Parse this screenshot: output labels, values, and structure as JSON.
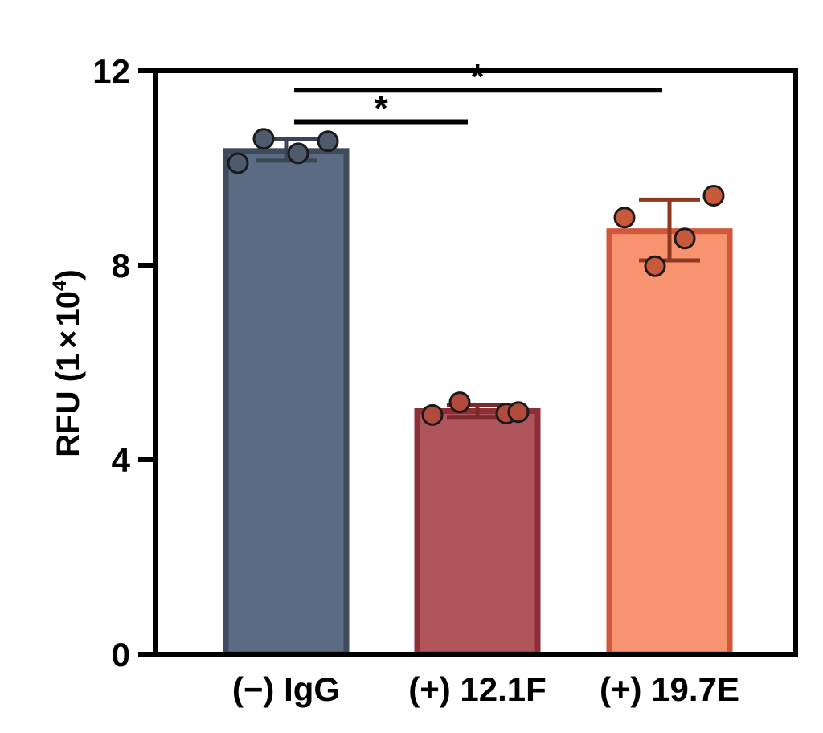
{
  "chart_data": {
    "type": "bar",
    "title": "",
    "xlabel": "",
    "ylabel": "RFU (1×10⁴)",
    "ylabel_main": "RFU (1",
    "ylabel_times": "×",
    "ylabel_ten": "10",
    "ylabel_exp": "4",
    "ylabel_close": ")",
    "ylim": [
      0,
      12
    ],
    "yticks": [
      0,
      4,
      8,
      12
    ],
    "grid": false,
    "legend": "none",
    "categories": [
      "(−) IgG",
      "(+) 12.1F",
      "(+) 19.7E"
    ],
    "values": [
      10.35,
      5.0,
      8.7
    ],
    "error_upper": [
      10.6,
      5.12,
      9.35
    ],
    "error_lower": [
      10.15,
      4.88,
      8.1
    ],
    "points": [
      [
        10.1,
        10.6,
        10.3,
        10.55
      ],
      [
        4.92,
        5.18,
        4.95,
        4.98
      ],
      [
        8.98,
        7.98,
        8.55,
        9.43
      ]
    ],
    "colors": {
      "fill": [
        "#5b6b84",
        "#b0555c",
        "#f8936f"
      ],
      "edge": [
        "#3f4a5c",
        "#8e2f38",
        "#d0583a"
      ],
      "point": [
        "#4e5b6f",
        "#b34a3e",
        "#c85a3c"
      ],
      "error": [
        "#3a4556",
        "#7a2a2a",
        "#8e3822"
      ]
    },
    "significance": [
      {
        "from": 0,
        "to": 1,
        "label": "*",
        "level": 10.95
      },
      {
        "from": 0,
        "to": 2,
        "label": "*",
        "level": 11.6
      }
    ]
  }
}
